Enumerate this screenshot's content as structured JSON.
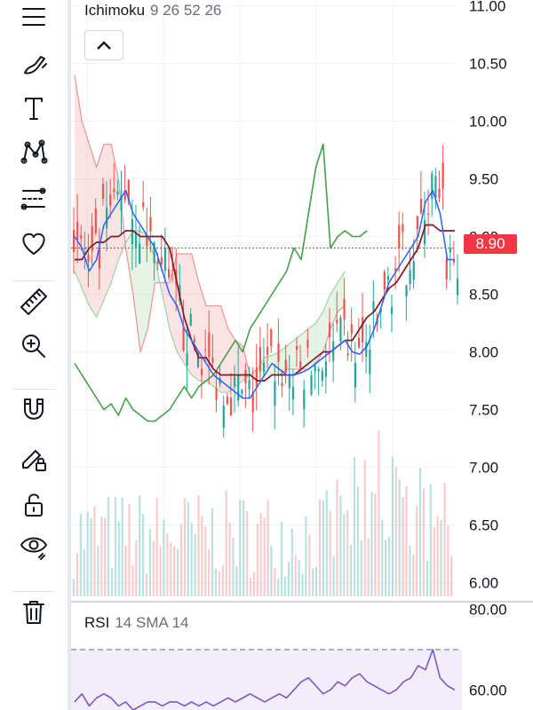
{
  "indicator": {
    "name": "Ichimoku",
    "params": "9 26 52 26"
  },
  "rsi_indicator": {
    "name": "RSI",
    "params": "14 SMA 14"
  },
  "last_price": {
    "label": "8.90",
    "value": 8.9
  },
  "toolbar": {
    "items": [
      {
        "icon": "menu-lines-icon"
      },
      {
        "icon": "brush-icon"
      },
      {
        "icon": "text-icon"
      },
      {
        "icon": "pattern-icon"
      },
      {
        "icon": "fib-tool-icon"
      },
      {
        "icon": "heart-icon"
      },
      {
        "icon": "ruler-icon"
      },
      {
        "icon": "zoom-in-icon"
      },
      {
        "icon": "magnet-icon"
      },
      {
        "icon": "lock-drawing-icon"
      },
      {
        "icon": "unlock-icon"
      },
      {
        "icon": "eye-icon"
      },
      {
        "icon": "trash-icon"
      }
    ]
  },
  "colors": {
    "up": "#26a69a",
    "down": "#ef5350",
    "conversion": "#2962ff",
    "base": "#801922",
    "lagging": "#43a047",
    "span_a": "#a5d6a7",
    "span_b": "#ef9a9a",
    "rsi": "#7e57c2",
    "badge": "#f23645"
  },
  "chart_data": [
    {
      "type": "candlestick",
      "ylim": [
        5.85,
        11.05
      ],
      "y_ticks": [
        "6.00",
        "6.50",
        "7.00",
        "7.50",
        "8.00",
        "8.50",
        "9.00",
        "9.50",
        "10.00",
        "10.50",
        "11.00"
      ],
      "series": [
        {
          "name": "Conversion Line",
          "values": [
            9.0,
            8.9,
            8.7,
            8.8,
            9.1,
            9.2,
            9.3,
            9.4,
            9.2,
            9.1,
            9.0,
            8.9,
            8.7,
            8.5,
            8.4,
            8.2,
            8.1,
            8.0,
            7.9,
            7.8,
            7.75,
            7.7,
            7.65,
            7.6,
            7.6,
            7.7,
            7.8,
            7.9,
            7.85,
            7.8,
            7.8,
            7.82,
            7.85,
            7.9,
            7.95,
            8.0,
            8.05,
            8.1,
            8.0,
            7.98,
            8.05,
            8.2,
            8.4,
            8.6,
            8.7,
            8.8,
            8.9,
            9.0,
            9.3,
            9.4,
            9.2,
            8.8,
            8.8
          ]
        },
        {
          "name": "Base Line",
          "values": [
            8.8,
            8.8,
            8.9,
            8.95,
            8.95,
            9.0,
            9.0,
            9.05,
            9.05,
            9.0,
            9.0,
            9.0,
            9.0,
            8.9,
            8.6,
            8.3,
            8.1,
            7.95,
            7.95,
            7.85,
            7.8,
            7.8,
            7.8,
            7.8,
            7.8,
            7.75,
            7.75,
            7.8,
            7.8,
            7.8,
            7.8,
            7.85,
            7.9,
            7.95,
            8.0,
            8.0,
            8.05,
            8.1,
            8.1,
            8.2,
            8.3,
            8.35,
            8.45,
            8.55,
            8.6,
            8.7,
            8.8,
            8.9,
            9.1,
            9.1,
            9.05,
            9.05,
            9.05
          ]
        },
        {
          "name": "Lagging Span",
          "values": [
            7.9,
            7.8,
            7.7,
            7.6,
            7.5,
            7.55,
            7.45,
            7.6,
            7.5,
            7.45,
            7.4,
            7.4,
            7.45,
            7.5,
            7.6,
            7.7,
            7.6,
            7.7,
            7.75,
            7.8,
            7.9,
            8.0,
            8.1,
            8.0,
            8.2,
            8.3,
            8.4,
            8.5,
            8.6,
            8.7,
            8.9,
            8.8,
            9.2,
            9.6,
            9.8,
            8.9,
            9.0,
            9.05,
            9.0,
            9.0,
            9.05
          ]
        },
        {
          "name": "Lead Span A",
          "values": [
            8.7,
            8.55,
            8.4,
            8.3,
            8.45,
            8.6,
            8.8,
            8.95,
            9.05,
            9.05,
            9.0,
            8.8,
            8.5,
            8.2,
            8.0,
            7.9,
            7.8,
            7.75,
            7.75,
            7.7,
            7.65,
            7.65,
            7.7,
            7.75,
            7.8,
            7.85,
            7.95,
            7.97,
            8.0,
            8.05,
            8.1,
            8.15,
            8.2,
            8.25,
            8.35,
            8.5,
            8.6,
            8.7
          ]
        },
        {
          "name": "Lead Span B",
          "values": [
            10.4,
            10.0,
            9.8,
            9.6,
            9.8,
            9.8,
            9.5,
            8.9,
            8.5,
            8.0,
            8.2,
            8.6,
            8.6,
            8.6,
            8.85,
            8.85,
            8.85,
            8.6,
            8.4,
            8.4,
            8.4,
            8.2,
            8.1,
            8.05,
            7.8,
            7.75,
            7.75,
            7.8,
            7.8,
            7.85,
            7.85,
            7.85,
            7.85,
            7.9,
            8.0,
            8.2,
            8.35,
            8.4
          ]
        }
      ],
      "last_price": 8.9
    },
    {
      "type": "bar",
      "name": "Volume"
    },
    {
      "type": "line",
      "name": "RSI",
      "ylim": [
        55.0,
        81.0
      ],
      "y_ticks": [
        "60.00",
        "80.00"
      ],
      "values": [
        57,
        59,
        56,
        58,
        59,
        58,
        56,
        57,
        55,
        56,
        57,
        57,
        56,
        57,
        57,
        56,
        57,
        56,
        57,
        56,
        57,
        58,
        57,
        58,
        59,
        58,
        57,
        58,
        59,
        58,
        60,
        62,
        63,
        61,
        59,
        60,
        62,
        61,
        63,
        64,
        62,
        61,
        60,
        59,
        60,
        62,
        63,
        66,
        65,
        70,
        63,
        61,
        60
      ],
      "band_upper": 70
    }
  ]
}
